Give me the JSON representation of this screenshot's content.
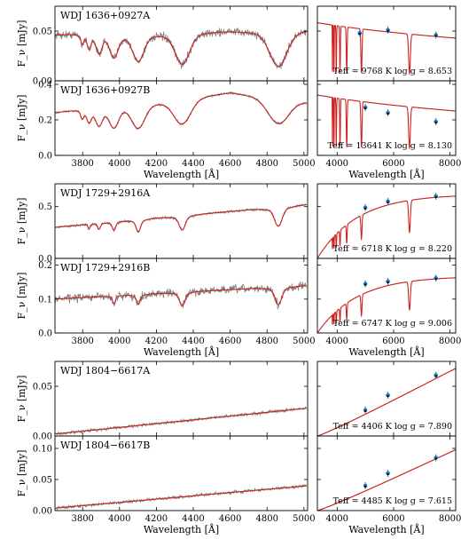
{
  "chart_data": [
    {
      "type": "line",
      "group": "WDJ 1636+0927",
      "panels": [
        {
          "kind": "spectrum",
          "label": "WDJ 1636+0927A",
          "ylabel": "F_ν [mJy]",
          "xlim": [
            3650,
            5020
          ],
          "ylim": [
            0.0,
            0.075
          ],
          "yticks": [
            "0.00",
            "0.05"
          ],
          "continuum": [
            [
              3650,
              0.046
            ],
            [
              5020,
              0.052
            ]
          ],
          "lines": [
            [
              4861,
              0.032,
              45
            ],
            [
              4340,
              0.028,
              38
            ],
            [
              4102,
              0.024,
              30
            ],
            [
              3970,
              0.02,
              22
            ],
            [
              3889,
              0.016,
              15
            ],
            [
              3835,
              0.012,
              10
            ],
            [
              3798,
              0.008,
              7
            ]
          ],
          "noise": 0.004
        },
        {
          "kind": "spectrum",
          "label": "WDJ 1636+0927B",
          "ylabel": "F_ν [mJy]",
          "xlim": [
            3650,
            5020
          ],
          "ylim": [
            0.0,
            0.42
          ],
          "yticks": [
            "0.0",
            "0.2",
            "0.4"
          ],
          "continuum": [
            [
              3650,
              0.24
            ],
            [
              4600,
              0.36
            ],
            [
              5020,
              0.31
            ]
          ],
          "lines": [
            [
              4861,
              0.13,
              55
            ],
            [
              4340,
              0.13,
              45
            ],
            [
              4102,
              0.12,
              35
            ],
            [
              3970,
              0.1,
              25
            ],
            [
              3889,
              0.08,
              18
            ],
            [
              3835,
              0.06,
              12
            ],
            [
              3798,
              0.04,
              8
            ]
          ],
          "noise": 0.006
        }
      ],
      "seds": [
        {
          "kind": "sed",
          "fit": "Teff = 9768 K log g = 8.653",
          "xlim": [
            3300,
            8200
          ],
          "ylim": [
            0.0,
            0.075
          ],
          "model_scale": 0.055,
          "model_shape": "hot",
          "points": [
            [
              4800,
              0.048
            ],
            [
              5800,
              0.051
            ],
            [
              7500,
              0.046
            ]
          ]
        },
        {
          "kind": "sed",
          "fit": "Teff = 13641 K log g = 8.130",
          "xlim": [
            3300,
            8200
          ],
          "ylim": [
            0.0,
            0.42
          ],
          "model_scale": 0.32,
          "model_shape": "hot",
          "points": [
            [
              5000,
              0.27
            ],
            [
              5800,
              0.24
            ],
            [
              7500,
              0.19
            ]
          ]
        }
      ],
      "xlabel": "Wavelength [Å]",
      "xticks": [
        "3800",
        "4000",
        "4200",
        "4400",
        "4600",
        "4800",
        "5000"
      ],
      "sed_xticks": [
        "4000",
        "6000",
        "8000"
      ]
    },
    {
      "type": "line",
      "group": "WDJ 1729+2916",
      "panels": [
        {
          "kind": "spectrum",
          "label": "WDJ 1729+2916A",
          "ylabel": "F_ν [mJy]",
          "xlim": [
            3650,
            5020
          ],
          "ylim": [
            0.0,
            0.72
          ],
          "yticks": [
            "0.0",
            "0.5"
          ],
          "continuum": [
            [
              3650,
              0.3
            ],
            [
              5020,
              0.52
            ]
          ],
          "lines": [
            [
              4861,
              0.16,
              20
            ],
            [
              4340,
              0.12,
              16
            ],
            [
              4102,
              0.1,
              12
            ],
            [
              3970,
              0.07,
              9
            ],
            [
              3889,
              0.05,
              7
            ],
            [
              3835,
              0.04,
              5
            ]
          ],
          "noise": 0.012
        },
        {
          "kind": "spectrum",
          "label": "WDJ 1729+2916B",
          "ylabel": "F_ν [mJy]",
          "xlim": [
            3650,
            5020
          ],
          "ylim": [
            0.0,
            0.22
          ],
          "yticks": [
            "0.0",
            "0.1",
            "0.2"
          ],
          "continuum": [
            [
              3650,
              0.1
            ],
            [
              5020,
              0.14
            ]
          ],
          "lines": [
            [
              4861,
              0.045,
              18
            ],
            [
              4340,
              0.035,
              14
            ],
            [
              4102,
              0.025,
              10
            ],
            [
              3970,
              0.02,
              8
            ]
          ],
          "noise": 0.012
        }
      ],
      "seds": [
        {
          "kind": "sed",
          "fit": "Teff = 6718 K log g = 8.220",
          "xlim": [
            3300,
            8200
          ],
          "ylim": [
            0.0,
            0.72
          ],
          "model_scale": 0.62,
          "model_shape": "cool",
          "points": [
            [
              5000,
              0.49
            ],
            [
              5800,
              0.55
            ],
            [
              7500,
              0.6
            ]
          ]
        },
        {
          "kind": "sed",
          "fit": "Teff = 6747 K log g = 9.006",
          "xlim": [
            3300,
            8200
          ],
          "ylim": [
            0.0,
            0.22
          ],
          "model_scale": 0.168,
          "model_shape": "cool",
          "points": [
            [
              5000,
              0.145
            ],
            [
              5800,
              0.152
            ],
            [
              7500,
              0.162
            ]
          ]
        }
      ],
      "xlabel": "Wavelength [Å]",
      "xticks": [
        "3800",
        "4000",
        "4200",
        "4400",
        "4600",
        "4800",
        "5000"
      ],
      "sed_xticks": [
        "4000",
        "6000",
        "8000"
      ]
    },
    {
      "type": "line",
      "group": "WDJ 1804−6617",
      "panels": [
        {
          "kind": "spectrum",
          "label": "WDJ 1804−6617A",
          "ylabel": "F_ν [mJy]",
          "xlim": [
            3650,
            5020
          ],
          "ylim": [
            0.0,
            0.075
          ],
          "yticks": [
            "0.00",
            "0.05"
          ],
          "continuum": [
            [
              3650,
              0.002
            ],
            [
              5020,
              0.028
            ]
          ],
          "lines": [],
          "noise": 0.0015
        },
        {
          "kind": "spectrum",
          "label": "WDJ 1804−6617B",
          "ylabel": "F_ν [mJy]",
          "xlim": [
            3650,
            5020
          ],
          "ylim": [
            0.0,
            0.12
          ],
          "yticks": [
            "0.00",
            "0.05",
            "0.10"
          ],
          "continuum": [
            [
              3650,
              0.004
            ],
            [
              5020,
              0.04
            ]
          ],
          "lines": [],
          "noise": 0.0025
        }
      ],
      "seds": [
        {
          "kind": "sed",
          "fit": "Teff = 4406 K log g = 7.890",
          "xlim": [
            3300,
            8200
          ],
          "ylim": [
            0.0,
            0.075
          ],
          "model_scale": 0.068,
          "model_shape": "verycool",
          "points": [
            [
              5000,
              0.026
            ],
            [
              5800,
              0.041
            ],
            [
              7500,
              0.061
            ]
          ]
        },
        {
          "kind": "sed",
          "fit": "Teff = 4485 K log g = 7.615",
          "xlim": [
            3300,
            8200
          ],
          "ylim": [
            0.0,
            0.12
          ],
          "model_scale": 0.098,
          "model_shape": "verycool",
          "points": [
            [
              5000,
              0.04
            ],
            [
              5800,
              0.06
            ],
            [
              7500,
              0.085
            ]
          ]
        }
      ],
      "xlabel": "Wavelength [Å]",
      "xticks": [
        "3800",
        "4000",
        "4200",
        "4400",
        "4600",
        "4800",
        "5000"
      ],
      "sed_xticks": [
        "4000",
        "6000",
        "8000"
      ]
    }
  ],
  "colors": {
    "observed": "#808080",
    "model": "#cc2222",
    "photometry": "#1f77b4",
    "synthetic": "#000000"
  }
}
